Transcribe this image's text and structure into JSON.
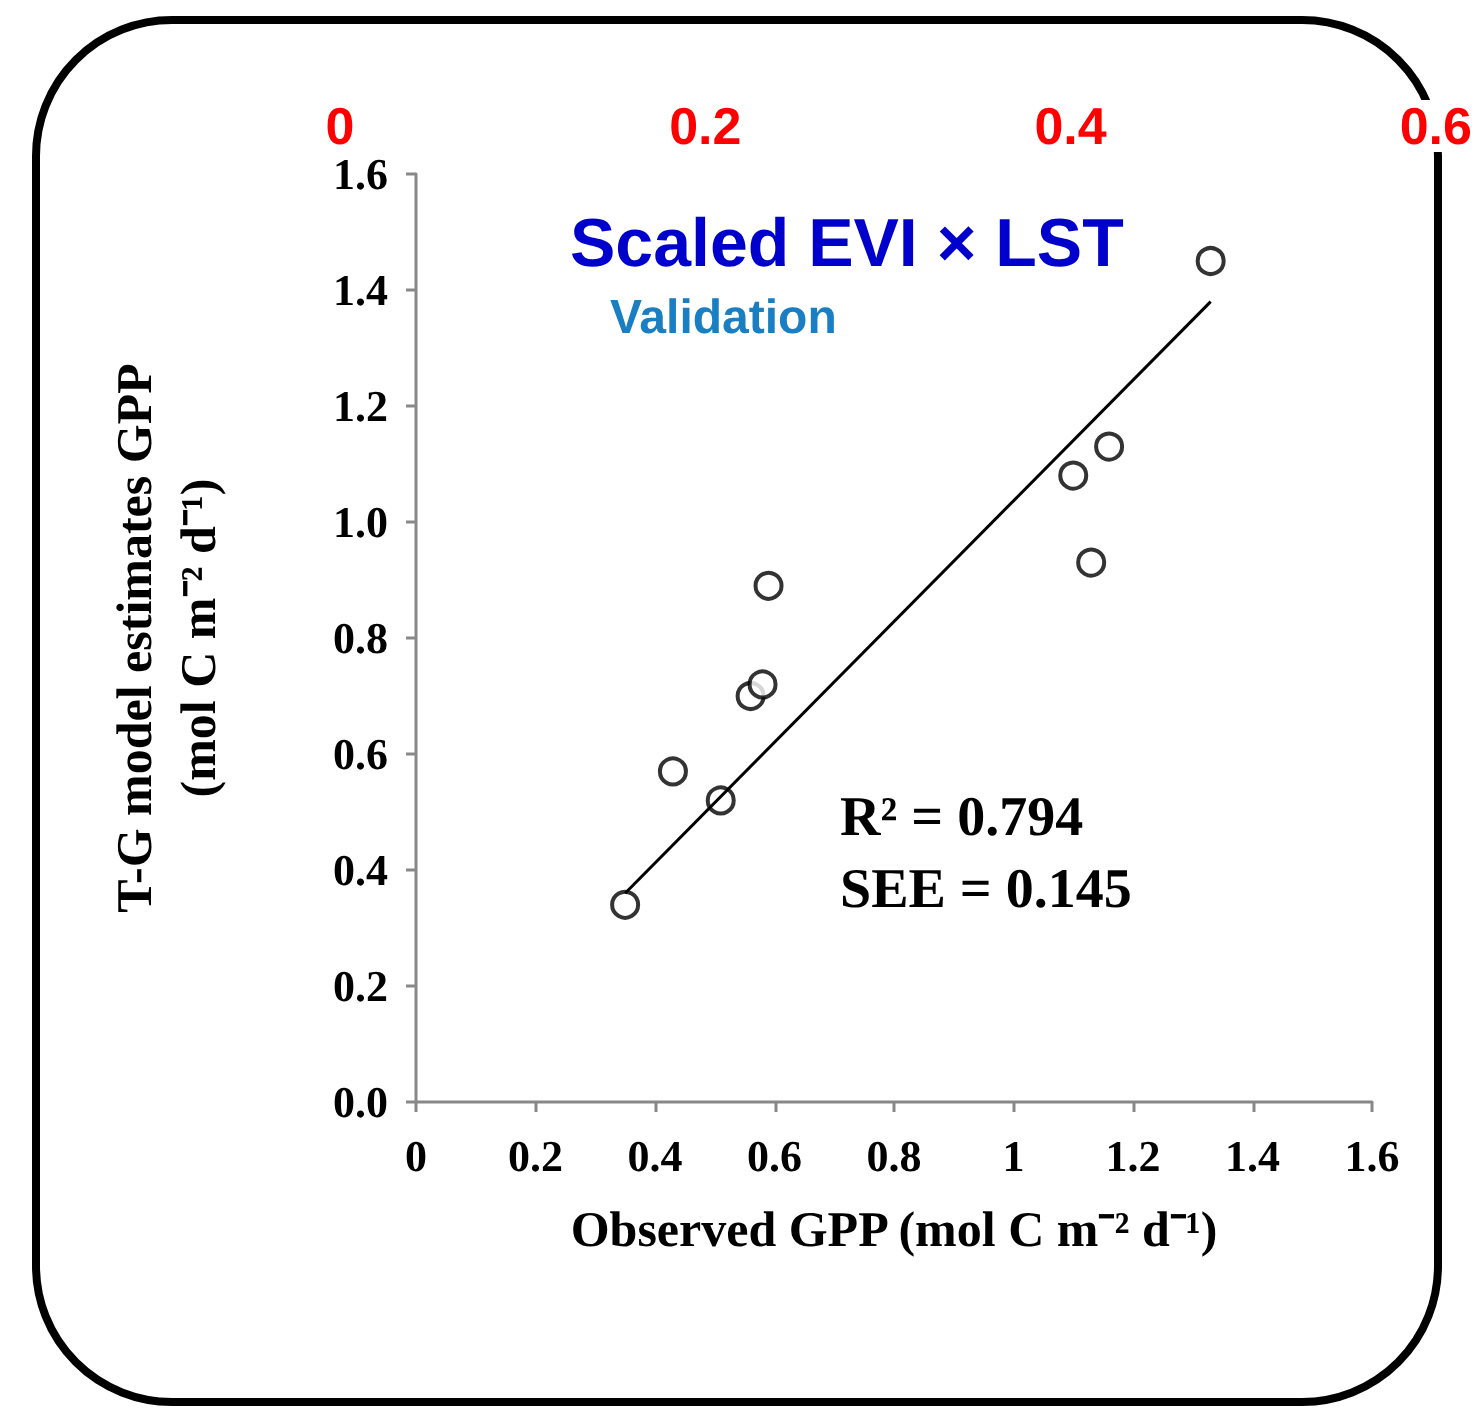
{
  "chart_data": {
    "type": "scatter",
    "title": "Scaled EVI × LST",
    "subtitle": "Validation",
    "xlabel": "Observed GPP (mol C m⁻² d⁻¹)",
    "ylabel": "T-G model estimates GPP\n(mol C m⁻² d⁻¹)",
    "x": [
      0.35,
      0.43,
      0.51,
      0.56,
      0.58,
      0.59,
      1.1,
      1.16,
      1.13,
      1.33
    ],
    "series": [
      {
        "color": "#000000",
        "values": [
          0.34,
          0.57,
          0.52,
          0.7,
          0.72,
          0.89,
          1.08,
          1.13,
          0.93,
          1.45
        ]
      },
      {
        "type": "line",
        "color": "#000000",
        "x": [
          0.35,
          1.33
        ],
        "values": [
          0.36,
          1.38
        ],
        "marker": "none"
      }
    ],
    "annotations": [
      "R² = 0.794",
      "SEE = 0.145"
    ],
    "xlim": [
      0,
      1.6
    ],
    "xticks": [
      0,
      0.2,
      0.4,
      0.6,
      0.8,
      1,
      1.2,
      1.4,
      1.6
    ],
    "ylim": [
      0,
      1.6
    ],
    "yticks": [
      {
        "value": 0,
        "label": "0.0"
      },
      {
        "value": 0.2,
        "label": "0.2"
      },
      {
        "value": 0.4,
        "label": "0.4"
      },
      {
        "value": 0.6,
        "label": "0.6"
      },
      {
        "value": 0.8,
        "label": "0.8"
      },
      {
        "value": 1,
        "label": "1.0"
      },
      {
        "value": 1.2,
        "label": "1.2"
      },
      {
        "value": 1.4,
        "label": "1.4"
      },
      {
        "value": 1.6,
        "label": "1.6"
      }
    ],
    "x2lim": [
      0,
      0.6
    ],
    "x2ticks": [
      0,
      0.2,
      0.4,
      0.6
    ],
    "grid": false,
    "marker": "circle"
  }
}
